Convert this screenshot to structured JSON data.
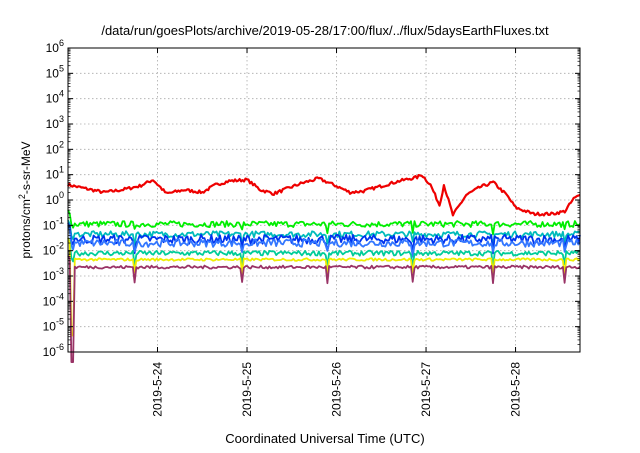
{
  "chart_data": {
    "type": "line",
    "title": "/data/run/goesPlots/archive/2019-05-28/17:00/flux/../flux/5daysEarthFluxes.txt",
    "xlabel": "Coordinated Universal Time (UTC)",
    "ylabel": "protons/cm²-s-sr-MeV",
    "ylabel_parts": {
      "pre": "protons/cm",
      "sup": "2",
      "post": "-s-sr-MeV"
    },
    "yscale": "log",
    "ylim_exp": [
      -6,
      6
    ],
    "ytick_base": "10",
    "yticks_exp": [
      "-6",
      "-5",
      "-4",
      "-3",
      "-2",
      "-1",
      "0",
      "1",
      "2",
      "3",
      "4",
      "5",
      "6"
    ],
    "xlim_days": [
      23.0,
      28.72
    ],
    "xticks": [
      {
        "label": "2019-5-24",
        "day": 24
      },
      {
        "label": "2019-5-25",
        "day": 25
      },
      {
        "label": "2019-5-26",
        "day": 26
      },
      {
        "label": "2019-5-27",
        "day": 27
      },
      {
        "label": "2019-5-28",
        "day": 28
      }
    ],
    "grid": true,
    "series": [
      {
        "color": "#ee0000",
        "level": 0.2,
        "wiggle": 0.12,
        "points": [
          [
            23.0,
            0.6
          ],
          [
            23.2,
            0.45
          ],
          [
            23.4,
            0.3
          ],
          [
            23.6,
            0.4
          ],
          [
            23.8,
            0.55
          ],
          [
            23.95,
            0.8
          ],
          [
            24.1,
            0.25
          ],
          [
            24.3,
            0.4
          ],
          [
            24.5,
            0.3
          ],
          [
            24.65,
            0.6
          ],
          [
            24.8,
            0.75
          ],
          [
            25.0,
            0.8
          ],
          [
            25.15,
            0.4
          ],
          [
            25.3,
            0.25
          ],
          [
            25.45,
            0.45
          ],
          [
            25.6,
            0.65
          ],
          [
            25.8,
            0.85
          ],
          [
            26.0,
            0.55
          ],
          [
            26.15,
            0.3
          ],
          [
            26.3,
            0.35
          ],
          [
            26.5,
            0.55
          ],
          [
            26.7,
            0.75
          ],
          [
            26.9,
            0.9
          ],
          [
            26.95,
            1.0
          ],
          [
            27.05,
            0.6
          ],
          [
            27.15,
            -0.2
          ],
          [
            27.2,
            0.6
          ],
          [
            27.3,
            -0.6
          ],
          [
            27.45,
            0.2
          ],
          [
            27.6,
            0.5
          ],
          [
            27.75,
            0.7
          ],
          [
            27.9,
            0.2
          ],
          [
            28.0,
            -0.3
          ],
          [
            28.2,
            -0.55
          ],
          [
            28.4,
            -0.55
          ],
          [
            28.55,
            -0.45
          ],
          [
            28.65,
            0.05
          ],
          [
            28.72,
            0.2
          ]
        ]
      },
      {
        "color": "#00ee00",
        "level": -0.95,
        "wiggle": 0.12,
        "start": -0.4
      },
      {
        "color": "#00bbbb",
        "level": -1.35,
        "wiggle": 0.12,
        "start": -0.8
      },
      {
        "color": "#0033ee",
        "level": -1.55,
        "wiggle": 0.18,
        "start": -0.9
      },
      {
        "color": "#3377ff",
        "level": -1.7,
        "wiggle": 0.15,
        "start": -1.0
      },
      {
        "color": "#00cc99",
        "level": -2.1,
        "wiggle": 0.1,
        "start": -1.5
      },
      {
        "color": "#eeee00",
        "level": -2.35,
        "wiggle": 0.05,
        "start": -1.5,
        "dip": -4.8
      },
      {
        "color": "#993366",
        "level": -2.65,
        "wiggle": 0.06,
        "start": -2.2,
        "dip": -5.8
      }
    ]
  }
}
